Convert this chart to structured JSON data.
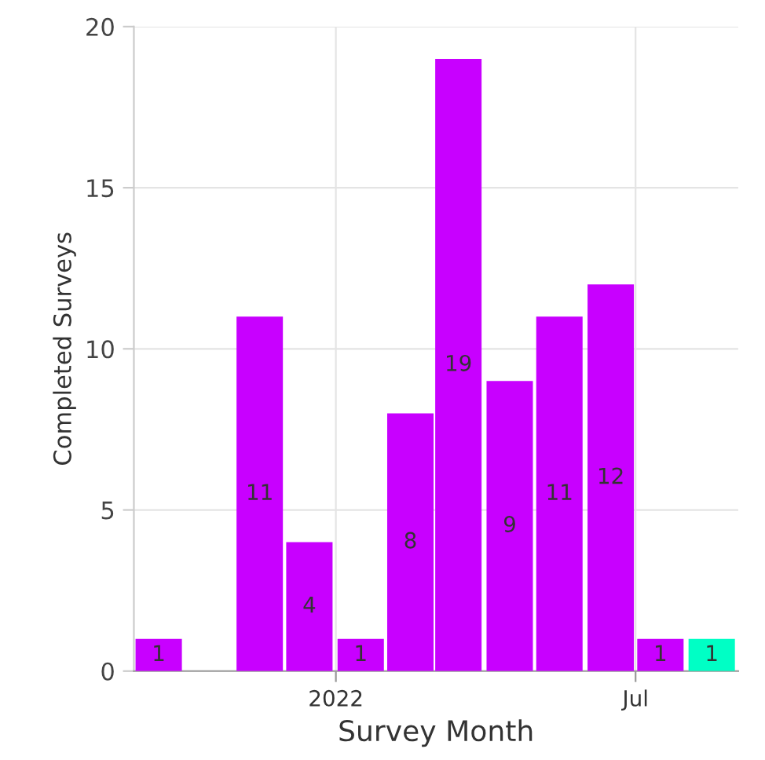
{
  "chart_data": {
    "type": "bar",
    "xlabel": "Survey Month",
    "ylabel": "Completed Surveys",
    "x": [
      "2021-09-16",
      "2021-10-16",
      "2021-11-16",
      "2021-12-16",
      "2022-01-16",
      "2022-02-15",
      "2022-03-16",
      "2022-04-16",
      "2022-05-16",
      "2022-06-16",
      "2022-07-16",
      "2022-08-16"
    ],
    "values": [
      1,
      null,
      11,
      4,
      1,
      8,
      19,
      9,
      11,
      12,
      1,
      1
    ],
    "colors": [
      "#c800ff",
      "#c800ff",
      "#c800ff",
      "#c800ff",
      "#c800ff",
      "#c800ff",
      "#c800ff",
      "#c800ff",
      "#c800ff",
      "#c800ff",
      "#c800ff",
      "#00ffc5"
    ],
    "xlim": [
      "2021-09-01",
      "2022-09-01"
    ],
    "xticks": [
      {
        "value": "2022-01-01",
        "label": "2022"
      },
      {
        "value": "2022-07-01",
        "label": "Jul"
      }
    ],
    "ylim": [
      0,
      20
    ],
    "yticks": [
      0,
      5,
      10,
      15,
      20
    ],
    "grid": true,
    "data_labels": true
  }
}
